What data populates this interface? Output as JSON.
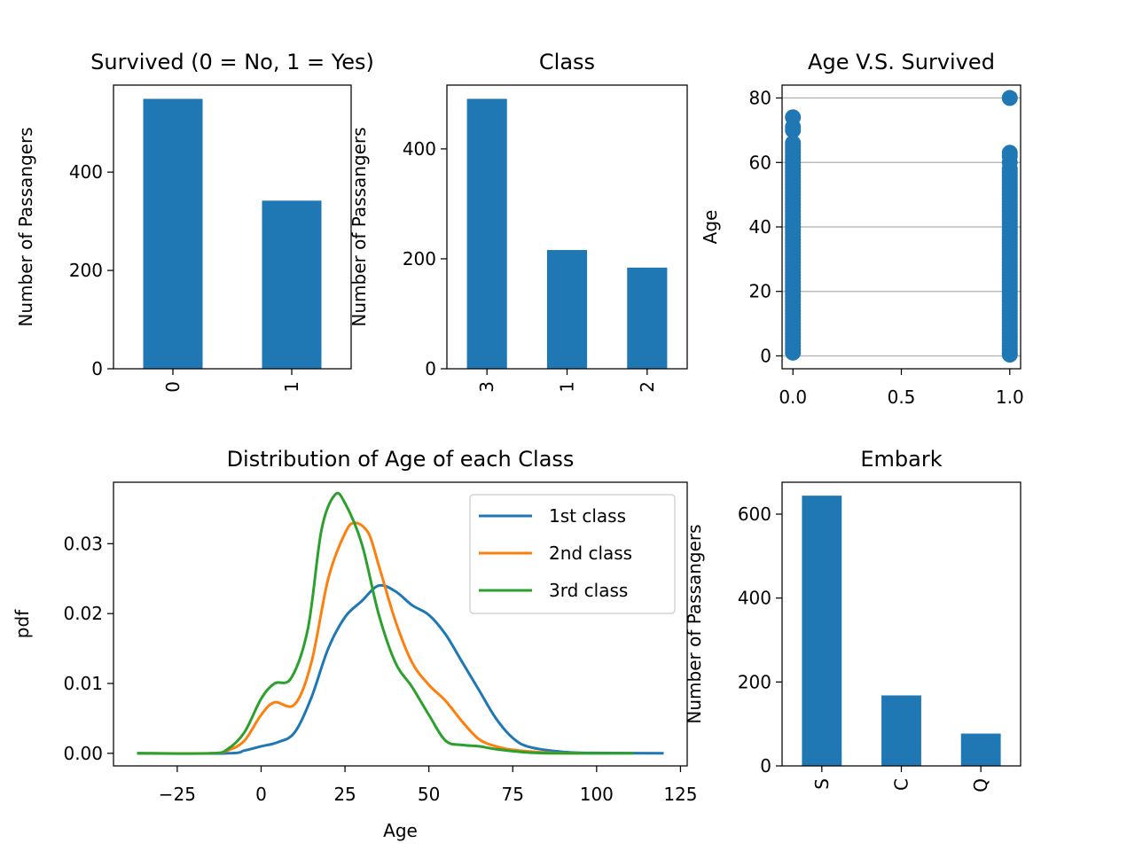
{
  "chart_data": [
    {
      "id": "survived",
      "type": "bar",
      "title": "Survived (0 = No, 1 = Yes)",
      "xlabel": "",
      "ylabel": "Number of Passangers",
      "categories": [
        "0",
        "1"
      ],
      "values": [
        549,
        342
      ],
      "ylim": [
        0,
        577
      ],
      "yticks": [
        0,
        200,
        400
      ],
      "color": "#1f77b4",
      "grid": false
    },
    {
      "id": "class",
      "type": "bar",
      "title": "Class",
      "xlabel": "",
      "ylabel": "Number of Passangers",
      "categories": [
        "3",
        "1",
        "2"
      ],
      "values": [
        491,
        216,
        184
      ],
      "ylim": [
        0,
        516
      ],
      "yticks": [
        0,
        200,
        400
      ],
      "color": "#1f77b4",
      "grid": false
    },
    {
      "id": "age-vs-survived",
      "type": "scatter",
      "title": "Age V.S. Survived",
      "xlabel": "",
      "ylabel": "Age",
      "xlim": [
        -0.05,
        1.05
      ],
      "ylim": [
        -4,
        84
      ],
      "xticks": [
        0.0,
        0.5,
        1.0
      ],
      "xtick_labels": [
        "0.0",
        "0.5",
        "1.0"
      ],
      "yticks": [
        0,
        20,
        40,
        60,
        80
      ],
      "grid": "y",
      "color": "#1f77b4",
      "series": [
        {
          "x": 0,
          "ages": [
            1,
            2,
            3,
            4,
            5,
            6,
            7,
            8,
            9,
            10,
            11,
            12,
            13,
            14,
            15,
            16,
            17,
            18,
            19,
            20,
            21,
            22,
            23,
            24,
            25,
            26,
            27,
            28,
            29,
            30,
            31,
            32,
            33,
            34,
            35,
            36,
            37,
            38,
            39,
            40,
            41,
            42,
            43,
            44,
            45,
            46,
            47,
            48,
            49,
            50,
            51,
            52,
            53,
            54,
            55,
            56,
            57,
            58,
            59,
            60,
            61,
            62,
            63,
            64,
            65,
            66,
            70,
            71,
            74
          ]
        },
        {
          "x": 1,
          "ages": [
            0.4,
            1,
            2,
            3,
            4,
            5,
            6,
            7,
            8,
            9,
            10,
            11,
            12,
            13,
            14,
            15,
            16,
            17,
            18,
            19,
            20,
            21,
            22,
            23,
            24,
            25,
            26,
            27,
            28,
            29,
            30,
            31,
            32,
            33,
            34,
            35,
            36,
            37,
            38,
            39,
            40,
            41,
            42,
            43,
            44,
            45,
            46,
            47,
            48,
            49,
            50,
            51,
            52,
            53,
            54,
            55,
            56,
            57,
            58,
            60,
            62,
            63,
            80
          ]
        }
      ]
    },
    {
      "id": "age-distribution",
      "type": "line",
      "title": "Distribution of Age of each Class",
      "xlabel": "Age",
      "ylabel": "pdf",
      "xlim": [
        -44,
        127
      ],
      "ylim": [
        -0.0018,
        0.0388
      ],
      "xticks": [
        -25,
        0,
        25,
        50,
        75,
        100,
        125
      ],
      "yticks": [
        0.0,
        0.01,
        0.02,
        0.03
      ],
      "ytick_labels": [
        "0.00",
        "0.01",
        "0.02",
        "0.03"
      ],
      "legend": "top-right",
      "series": [
        {
          "name": "1st class",
          "color": "#1f77b4",
          "points": [
            [
              -37,
              0
            ],
            [
              -10,
              0
            ],
            [
              -5,
              0.0004
            ],
            [
              0,
              0.001
            ],
            [
              5,
              0.0016
            ],
            [
              10,
              0.003
            ],
            [
              15,
              0.008
            ],
            [
              20,
              0.015
            ],
            [
              25,
              0.0195
            ],
            [
              30,
              0.0218
            ],
            [
              35,
              0.024
            ],
            [
              40,
              0.0232
            ],
            [
              45,
              0.0212
            ],
            [
              50,
              0.0198
            ],
            [
              55,
              0.017
            ],
            [
              60,
              0.013
            ],
            [
              65,
              0.009
            ],
            [
              70,
              0.005
            ],
            [
              75,
              0.0022
            ],
            [
              80,
              0.0009
            ],
            [
              90,
              0.0002
            ],
            [
              100,
              5e-05
            ],
            [
              120,
              0
            ]
          ]
        },
        {
          "name": "2nd class",
          "color": "#ff7f0e",
          "points": [
            [
              -36,
              0
            ],
            [
              -15,
              0
            ],
            [
              -10,
              0.0004
            ],
            [
              -5,
              0.0018
            ],
            [
              0,
              0.0055
            ],
            [
              4,
              0.0073
            ],
            [
              10,
              0.007
            ],
            [
              15,
              0.013
            ],
            [
              20,
              0.025
            ],
            [
              25,
              0.0315
            ],
            [
              28,
              0.033
            ],
            [
              32,
              0.0315
            ],
            [
              35,
              0.027
            ],
            [
              40,
              0.019
            ],
            [
              45,
              0.013
            ],
            [
              50,
              0.0098
            ],
            [
              55,
              0.0075
            ],
            [
              60,
              0.0045
            ],
            [
              65,
              0.002
            ],
            [
              70,
              0.001
            ],
            [
              75,
              0.0005
            ],
            [
              85,
              0.0001
            ],
            [
              95,
              0
            ]
          ]
        },
        {
          "name": "3rd class",
          "color": "#2ca02c",
          "points": [
            [
              -37,
              0
            ],
            [
              -15,
              0
            ],
            [
              -10,
              0.0006
            ],
            [
              -5,
              0.003
            ],
            [
              0,
              0.0078
            ],
            [
              4,
              0.01
            ],
            [
              9,
              0.0108
            ],
            [
              14,
              0.018
            ],
            [
              18,
              0.032
            ],
            [
              22,
              0.037
            ],
            [
              25,
              0.0358
            ],
            [
              30,
              0.03
            ],
            [
              35,
              0.02
            ],
            [
              40,
              0.013
            ],
            [
              45,
              0.0095
            ],
            [
              50,
              0.0055
            ],
            [
              55,
              0.0018
            ],
            [
              60,
              0.0012
            ],
            [
              65,
              0.001
            ],
            [
              70,
              0.0006
            ],
            [
              80,
              0.0001
            ],
            [
              90,
              0
            ],
            [
              111,
              0
            ]
          ]
        }
      ]
    },
    {
      "id": "embark",
      "type": "bar",
      "title": "Embark",
      "xlabel": "",
      "ylabel": "Number of Passangers",
      "categories": [
        "S",
        "C",
        "Q"
      ],
      "values": [
        644,
        168,
        77
      ],
      "ylim": [
        0,
        676
      ],
      "yticks": [
        0,
        200,
        400,
        600
      ],
      "color": "#1f77b4",
      "grid": false
    }
  ]
}
